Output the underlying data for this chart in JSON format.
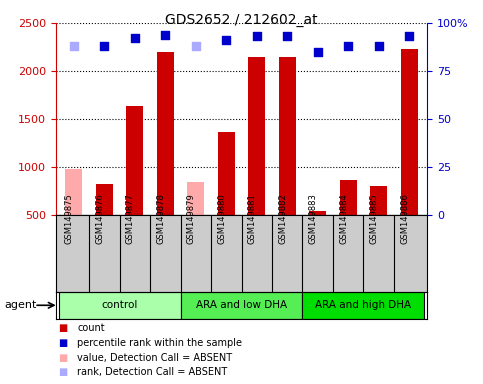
{
  "title": "GDS2652 / 212602_at",
  "samples": [
    "GSM149875",
    "GSM149876",
    "GSM149877",
    "GSM149878",
    "GSM149879",
    "GSM149880",
    "GSM149881",
    "GSM149882",
    "GSM149883",
    "GSM149884",
    "GSM149885",
    "GSM149886"
  ],
  "counts": [
    null,
    820,
    1640,
    2200,
    null,
    1370,
    2150,
    2150,
    540,
    860,
    800,
    2230
  ],
  "counts_absent": [
    980,
    null,
    null,
    null,
    840,
    null,
    null,
    null,
    null,
    null,
    null,
    null
  ],
  "percentile_ranks": [
    88,
    88,
    92,
    94,
    88,
    91,
    93,
    93,
    85,
    88,
    88,
    93
  ],
  "rank_absent": [
    true,
    false,
    false,
    false,
    true,
    false,
    false,
    false,
    false,
    false,
    false,
    false
  ],
  "groups": [
    {
      "label": "control",
      "indices": [
        0,
        1,
        2,
        3
      ],
      "color": "#aaffaa"
    },
    {
      "label": "ARA and low DHA",
      "indices": [
        4,
        5,
        6,
        7
      ],
      "color": "#55ee55"
    },
    {
      "label": "ARA and high DHA",
      "indices": [
        8,
        9,
        10,
        11
      ],
      "color": "#00dd00"
    }
  ],
  "ylim_left": [
    500,
    2500
  ],
  "ylim_right": [
    0,
    100
  ],
  "yticks_left": [
    500,
    1000,
    1500,
    2000,
    2500
  ],
  "yticks_right": [
    0,
    25,
    50,
    75,
    100
  ],
  "bar_color": "#cc0000",
  "bar_absent_color": "#ffaaaa",
  "dot_color": "#0000cc",
  "dot_absent_color": "#aaaaff",
  "dot_size": 35,
  "tick_label_color_left": "#cc0000",
  "tick_label_color_right": "#0000cc",
  "grid_color": "#000000",
  "sample_bg_color": "#cccccc",
  "agent_label": "agent",
  "legend_items": [
    {
      "color": "#cc0000",
      "label": "count"
    },
    {
      "color": "#0000cc",
      "label": "percentile rank within the sample"
    },
    {
      "color": "#ffaaaa",
      "label": "value, Detection Call = ABSENT"
    },
    {
      "color": "#aaaaff",
      "label": "rank, Detection Call = ABSENT"
    }
  ]
}
